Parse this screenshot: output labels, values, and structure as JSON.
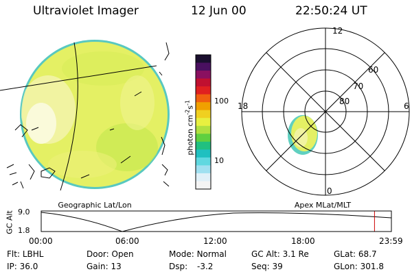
{
  "header": {
    "instrument": "Ultraviolet Imager",
    "date": "12 Jun 00",
    "time": "22:50:24 UT"
  },
  "colorbar": {
    "unit_label": "photon cm",
    "unit_exp1": "-2",
    "unit_mid": "s",
    "unit_exp2": "-1",
    "ticks": [
      {
        "label": "100",
        "value": 100
      },
      {
        "label": "10",
        "value": 10
      }
    ],
    "colors_top_to_bottom": [
      "#1a0f2e",
      "#4a1060",
      "#8a1060",
      "#c01030",
      "#e02020",
      "#f06010",
      "#f0a000",
      "#f0d020",
      "#e8f040",
      "#b0e040",
      "#60d040",
      "#20c080",
      "#20c0c0",
      "#60d8e0",
      "#a0e0f0",
      "#e0f0f8",
      "#f4f4f4"
    ]
  },
  "left_image": {
    "caption": "Geographic Lat/Lon",
    "disk_color": "#e4f064"
  },
  "right_plot": {
    "caption": "Apex MLat/MLT",
    "mlt_labels": [
      {
        "label": "12",
        "pos": "top"
      },
      {
        "label": "18",
        "pos": "left"
      },
      {
        "label": "6",
        "pos": "right"
      },
      {
        "label": "0",
        "pos": "bottom"
      }
    ],
    "lat_labels": [
      "60",
      "70",
      "80"
    ]
  },
  "timeline": {
    "y_label": "GC Alt",
    "y_ticks": [
      "9.0",
      "1.8"
    ],
    "x_ticks": [
      "00:00",
      "06:00",
      "12:00",
      "18:00",
      "23:59"
    ],
    "marker_time_hours": 22.84,
    "marker_color": "#cc0000"
  },
  "status": {
    "row1": [
      {
        "label": "Flt:",
        "value": "LBHL"
      },
      {
        "label": "Door:",
        "value": "Open"
      },
      {
        "label": "Mode:",
        "value": "Normal"
      },
      {
        "label": "GC Alt:",
        "value": "3.1 Re"
      },
      {
        "label": "GLat:",
        "value": "68.7"
      }
    ],
    "row2": [
      {
        "label": "IP:",
        "value": "36.0"
      },
      {
        "label": "Gain:",
        "value": "13"
      },
      {
        "label": "Dsp:",
        "value": "-3.2"
      },
      {
        "label": "Seq:",
        "value": "39"
      },
      {
        "label": "GLon:",
        "value": "301.8"
      }
    ]
  }
}
